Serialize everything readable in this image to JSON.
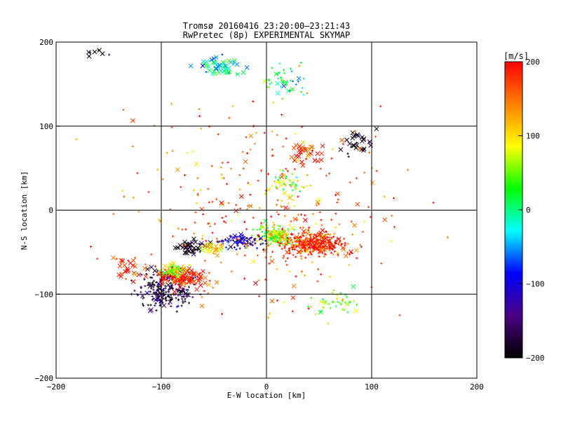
{
  "chart_data": [
    {
      "type": "scatter",
      "title": "Tromsø 20160416 23:20:00–23:21:43",
      "subtitle": "RwPretec (8p) EXPERIMENTAL SKYMAP",
      "xlabel": "E-W location [km]",
      "ylabel": "N-S location [km]",
      "xlim": [
        -200,
        200
      ],
      "ylim": [
        -200,
        200
      ],
      "xticks": [
        -200,
        -100,
        0,
        100,
        200
      ],
      "yticks": [
        -200,
        -100,
        0,
        100,
        200
      ],
      "grid": true,
      "markers": [
        "x",
        "+"
      ],
      "colorbar": {
        "label": "[m/s]",
        "range": [
          -200,
          200
        ],
        "ticks": [
          200,
          100,
          0,
          -100,
          -200
        ],
        "colormap": [
          "#000000",
          "#4b0082",
          "#0000ff",
          "#00ffff",
          "#00ff00",
          "#ffff00",
          "#ff7f00",
          "#ff0000"
        ]
      },
      "clusters": [
        {
          "x": -158,
          "y": 188,
          "spread": [
            10,
            8
          ],
          "count": 8,
          "velocity": -200,
          "marker": "x"
        },
        {
          "x": -42,
          "y": 172,
          "spread": [
            22,
            12
          ],
          "count": 55,
          "velocity": -20,
          "marker": "x"
        },
        {
          "x": 15,
          "y": 155,
          "spread": [
            18,
            20
          ],
          "count": 45,
          "velocity": 0,
          "marker": "+"
        },
        {
          "x": 38,
          "y": 68,
          "spread": [
            14,
            14
          ],
          "count": 35,
          "velocity": 190,
          "marker": "x"
        },
        {
          "x": 88,
          "y": 80,
          "spread": [
            18,
            16
          ],
          "count": 30,
          "velocity": -200,
          "marker": "x"
        },
        {
          "x": 20,
          "y": 30,
          "spread": [
            14,
            18
          ],
          "count": 40,
          "velocity": 60,
          "marker": "+"
        },
        {
          "x": 45,
          "y": -40,
          "spread": [
            32,
            14
          ],
          "count": 380,
          "velocity": 185,
          "marker": "+"
        },
        {
          "x": 8,
          "y": -30,
          "spread": [
            18,
            12
          ],
          "count": 160,
          "velocity": 70,
          "marker": "+"
        },
        {
          "x": -25,
          "y": -38,
          "spread": [
            22,
            10
          ],
          "count": 90,
          "velocity": -120,
          "marker": "+"
        },
        {
          "x": -70,
          "y": -45,
          "spread": [
            16,
            8
          ],
          "count": 45,
          "velocity": -200,
          "marker": "x"
        },
        {
          "x": -50,
          "y": -45,
          "spread": [
            10,
            6
          ],
          "count": 25,
          "velocity": 100,
          "marker": "x"
        },
        {
          "x": -95,
          "y": -95,
          "spread": [
            28,
            22
          ],
          "count": 220,
          "velocity": -170,
          "marker": "+"
        },
        {
          "x": -80,
          "y": -80,
          "spread": [
            22,
            12
          ],
          "count": 120,
          "velocity": 190,
          "marker": "x"
        },
        {
          "x": -88,
          "y": -72,
          "spread": [
            12,
            8
          ],
          "count": 40,
          "velocity": 80,
          "marker": "x"
        },
        {
          "x": 65,
          "y": -110,
          "spread": [
            22,
            14
          ],
          "count": 45,
          "velocity": 50,
          "marker": "+"
        },
        {
          "x": -130,
          "y": -70,
          "spread": [
            18,
            16
          ],
          "count": 25,
          "velocity": 180,
          "marker": "x"
        },
        {
          "x": 0,
          "y": 0,
          "spread": [
            120,
            120
          ],
          "count": 320,
          "velocity": 160,
          "marker": "+"
        }
      ]
    }
  ]
}
